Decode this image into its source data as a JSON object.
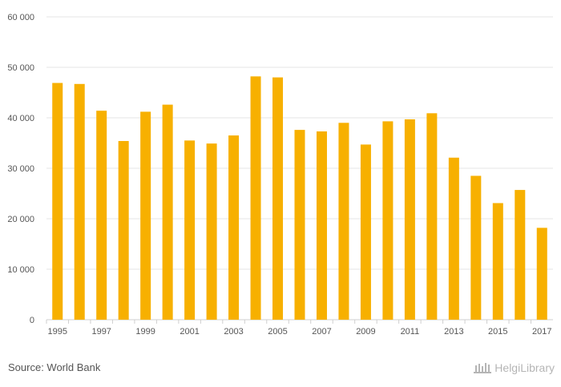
{
  "chart_data": {
    "type": "bar",
    "categories": [
      "1995",
      "1996",
      "1997",
      "1998",
      "1999",
      "2000",
      "2001",
      "2002",
      "2003",
      "2004",
      "2005",
      "2006",
      "2007",
      "2008",
      "2009",
      "2010",
      "2011",
      "2012",
      "2013",
      "2014",
      "2015",
      "2016",
      "2017"
    ],
    "x_tick_labels": [
      "1995",
      "1997",
      "1999",
      "2001",
      "2003",
      "2005",
      "2007",
      "2009",
      "2011",
      "2013",
      "2015",
      "2017"
    ],
    "values": [
      46900,
      46700,
      41400,
      35400,
      41200,
      42600,
      35500,
      34900,
      36500,
      48200,
      48000,
      37600,
      37300,
      39000,
      34700,
      39300,
      39700,
      40900,
      32100,
      28500,
      23100,
      25700,
      18200
    ],
    "y_ticks": [
      "0",
      "10 000",
      "20 000",
      "30 000",
      "40 000",
      "50 000",
      "60 000"
    ],
    "ylim": [
      0,
      60000
    ],
    "grid": true,
    "bar_color": "#f7b000"
  },
  "footer": {
    "source": "Source: World Bank",
    "brand": "HelgiLibrary"
  }
}
